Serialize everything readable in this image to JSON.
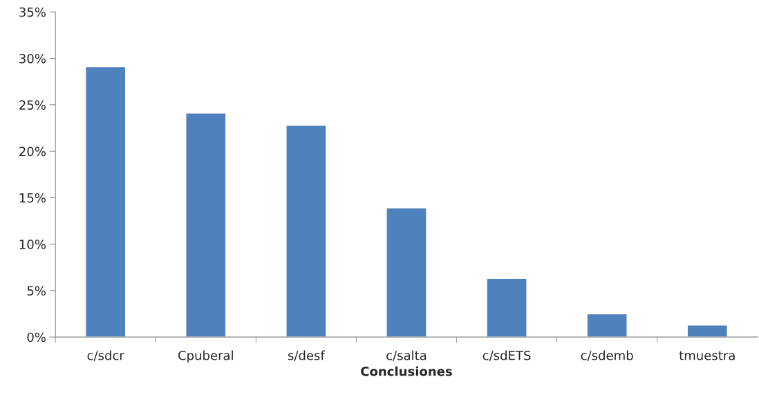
{
  "chart_data": {
    "type": "bar",
    "xlabel": "Conclusiones",
    "categories": [
      "c/sdcr",
      "Cpuberal",
      "s/desf",
      "c/salta",
      "c/sdETS",
      "c/sdemb",
      "tmuestra"
    ],
    "values": [
      29.1,
      24.1,
      22.8,
      13.9,
      6.3,
      2.5,
      1.3
    ],
    "color": "#4f81bd",
    "ylim": [
      0,
      35
    ],
    "yticks": [
      {
        "value": 0,
        "label": "0%"
      },
      {
        "value": 5,
        "label": "5%"
      },
      {
        "value": 10,
        "label": "10%"
      },
      {
        "value": 15,
        "label": "15%"
      },
      {
        "value": 20,
        "label": "20%"
      },
      {
        "value": 25,
        "label": "25%"
      },
      {
        "value": 30,
        "label": "30%"
      },
      {
        "value": 35,
        "label": "35%"
      }
    ],
    "grid": false,
    "legend": false
  }
}
